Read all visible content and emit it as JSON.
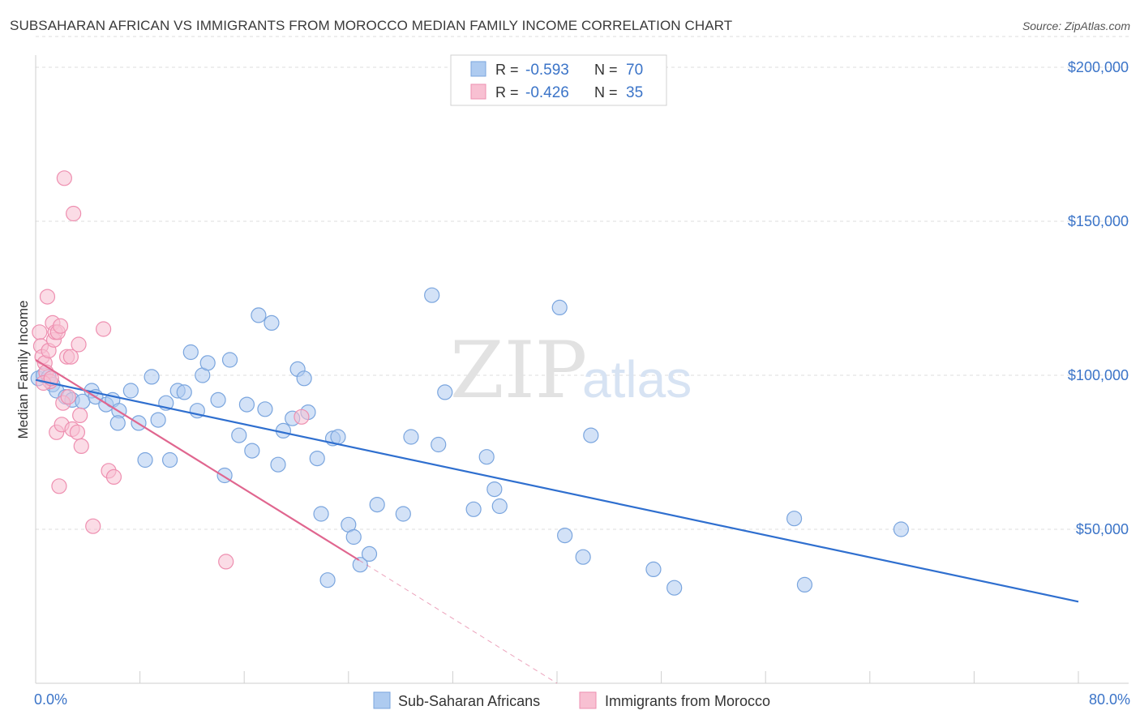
{
  "header": {
    "title": "SUBSAHARAN AFRICAN VS IMMIGRANTS FROM MOROCCO MEDIAN FAMILY INCOME CORRELATION CHART",
    "source": "Source: ZipAtlas.com"
  },
  "watermark": {
    "zip": "ZIP",
    "atlas": "atlas"
  },
  "stats_legend": {
    "rows": [
      {
        "r_label": "R =",
        "r_value": "-0.593",
        "n_label": "N =",
        "n_value": "70",
        "color": "#aecbf0",
        "stroke": "#7aa5de"
      },
      {
        "r_label": "R =",
        "r_value": "-0.426",
        "n_label": "N =",
        "n_value": "35",
        "color": "#f8c0d2",
        "stroke": "#ee8fb0"
      }
    ]
  },
  "bottom_legend": {
    "items": [
      {
        "label": "Sub-Saharan Africans",
        "color": "#aecbf0",
        "stroke": "#7aa5de"
      },
      {
        "label": "Immigrants from Morocco",
        "color": "#f8c0d2",
        "stroke": "#ee8fb0"
      }
    ]
  },
  "chart_data": {
    "type": "scatter",
    "title": "SUBSAHARAN AFRICAN VS IMMIGRANTS FROM MOROCCO MEDIAN FAMILY INCOME CORRELATION CHART",
    "xlabel": "",
    "ylabel": "Median Family Income",
    "xlim": [
      0,
      80
    ],
    "ylim": [
      0,
      210000
    ],
    "x_tick_labels": [
      "0.0%",
      "80.0%"
    ],
    "y_ticks": [
      50000,
      100000,
      150000,
      200000
    ],
    "y_tick_labels": [
      "$50,000",
      "$100,000",
      "$150,000",
      "$200,000"
    ],
    "grid": "horizontal dashed",
    "legend_position": "top-center",
    "series": [
      {
        "name": "Sub-Saharan Africans",
        "color": "#aecbf0",
        "stroke": "#7aa5de",
        "line_color": "#2f6fcf",
        "trend": {
          "x": [
            0,
            80
          ],
          "y": [
            98500,
            26500
          ]
        },
        "points": [
          {
            "x": 0.2,
            "y": 99000
          },
          {
            "x": 0.6,
            "y": 100000
          },
          {
            "x": 1.0,
            "y": 99500
          },
          {
            "x": 1.3,
            "y": 97000
          },
          {
            "x": 1.6,
            "y": 95000
          },
          {
            "x": 2.3,
            "y": 93000
          },
          {
            "x": 2.8,
            "y": 92000
          },
          {
            "x": 3.6,
            "y": 91500
          },
          {
            "x": 4.3,
            "y": 95000
          },
          {
            "x": 4.6,
            "y": 93000
          },
          {
            "x": 5.4,
            "y": 90500
          },
          {
            "x": 5.9,
            "y": 92000
          },
          {
            "x": 6.4,
            "y": 88500
          },
          {
            "x": 6.3,
            "y": 84500
          },
          {
            "x": 7.3,
            "y": 95000
          },
          {
            "x": 7.9,
            "y": 84500
          },
          {
            "x": 8.4,
            "y": 72500
          },
          {
            "x": 8.9,
            "y": 99500
          },
          {
            "x": 9.4,
            "y": 85500
          },
          {
            "x": 10.0,
            "y": 91000
          },
          {
            "x": 10.3,
            "y": 72500
          },
          {
            "x": 10.9,
            "y": 95000
          },
          {
            "x": 11.4,
            "y": 94500
          },
          {
            "x": 11.9,
            "y": 107500
          },
          {
            "x": 12.4,
            "y": 88500
          },
          {
            "x": 12.8,
            "y": 100000
          },
          {
            "x": 13.2,
            "y": 104000
          },
          {
            "x": 14.0,
            "y": 92000
          },
          {
            "x": 14.5,
            "y": 67500
          },
          {
            "x": 14.9,
            "y": 105000
          },
          {
            "x": 15.6,
            "y": 80500
          },
          {
            "x": 16.2,
            "y": 90500
          },
          {
            "x": 16.6,
            "y": 75500
          },
          {
            "x": 17.1,
            "y": 119500
          },
          {
            "x": 17.6,
            "y": 89000
          },
          {
            "x": 18.1,
            "y": 117000
          },
          {
            "x": 18.6,
            "y": 71000
          },
          {
            "x": 19.0,
            "y": 82000
          },
          {
            "x": 19.7,
            "y": 86000
          },
          {
            "x": 20.1,
            "y": 102000
          },
          {
            "x": 20.6,
            "y": 99000
          },
          {
            "x": 20.9,
            "y": 88000
          },
          {
            "x": 21.6,
            "y": 73000
          },
          {
            "x": 21.9,
            "y": 55000
          },
          {
            "x": 22.4,
            "y": 33500
          },
          {
            "x": 22.8,
            "y": 79500
          },
          {
            "x": 23.2,
            "y": 80000
          },
          {
            "x": 24.0,
            "y": 51500
          },
          {
            "x": 24.4,
            "y": 47500
          },
          {
            "x": 24.9,
            "y": 38500
          },
          {
            "x": 25.6,
            "y": 42000
          },
          {
            "x": 26.2,
            "y": 58000
          },
          {
            "x": 28.2,
            "y": 55000
          },
          {
            "x": 28.8,
            "y": 80000
          },
          {
            "x": 30.4,
            "y": 126000
          },
          {
            "x": 30.9,
            "y": 77500
          },
          {
            "x": 31.4,
            "y": 94500
          },
          {
            "x": 33.6,
            "y": 56500
          },
          {
            "x": 34.6,
            "y": 73500
          },
          {
            "x": 35.2,
            "y": 63000
          },
          {
            "x": 35.6,
            "y": 57500
          },
          {
            "x": 40.2,
            "y": 122000
          },
          {
            "x": 40.6,
            "y": 48000
          },
          {
            "x": 42.0,
            "y": 41000
          },
          {
            "x": 42.6,
            "y": 80500
          },
          {
            "x": 47.4,
            "y": 37000
          },
          {
            "x": 49.0,
            "y": 31000
          },
          {
            "x": 58.2,
            "y": 53500
          },
          {
            "x": 59.0,
            "y": 32000
          },
          {
            "x": 66.4,
            "y": 50000
          }
        ]
      },
      {
        "name": "Immigrants from Morocco",
        "color": "#f8c0d2",
        "stroke": "#ee8fb0",
        "line_color": "#e0668f",
        "trend": {
          "x": [
            0,
            24.8
          ],
          "y": [
            105000,
            40000
          ]
        },
        "trend_extension": {
          "x": [
            24.8,
            40.0
          ],
          "y": [
            40000,
            0
          ]
        },
        "points": [
          {
            "x": 0.3,
            "y": 114000
          },
          {
            "x": 0.4,
            "y": 109500
          },
          {
            "x": 0.5,
            "y": 106000
          },
          {
            "x": 0.7,
            "y": 104000
          },
          {
            "x": 0.8,
            "y": 101000
          },
          {
            "x": 0.9,
            "y": 125500
          },
          {
            "x": 1.0,
            "y": 108000
          },
          {
            "x": 1.1,
            "y": 98000
          },
          {
            "x": 1.3,
            "y": 117000
          },
          {
            "x": 1.4,
            "y": 111500
          },
          {
            "x": 1.5,
            "y": 114000
          },
          {
            "x": 1.6,
            "y": 81500
          },
          {
            "x": 1.7,
            "y": 114000
          },
          {
            "x": 1.8,
            "y": 64000
          },
          {
            "x": 1.9,
            "y": 116000
          },
          {
            "x": 2.0,
            "y": 84000
          },
          {
            "x": 2.1,
            "y": 91000
          },
          {
            "x": 2.2,
            "y": 164000
          },
          {
            "x": 2.4,
            "y": 106000
          },
          {
            "x": 2.5,
            "y": 93000
          },
          {
            "x": 2.7,
            "y": 106000
          },
          {
            "x": 2.8,
            "y": 82500
          },
          {
            "x": 2.9,
            "y": 152500
          },
          {
            "x": 3.2,
            "y": 81500
          },
          {
            "x": 3.3,
            "y": 110000
          },
          {
            "x": 3.4,
            "y": 87000
          },
          {
            "x": 3.5,
            "y": 77000
          },
          {
            "x": 4.4,
            "y": 51000
          },
          {
            "x": 5.2,
            "y": 115000
          },
          {
            "x": 5.6,
            "y": 69000
          },
          {
            "x": 6.0,
            "y": 67000
          },
          {
            "x": 14.6,
            "y": 39500
          },
          {
            "x": 20.4,
            "y": 86500
          },
          {
            "x": 0.6,
            "y": 97500
          },
          {
            "x": 1.2,
            "y": 99000
          }
        ]
      }
    ]
  }
}
